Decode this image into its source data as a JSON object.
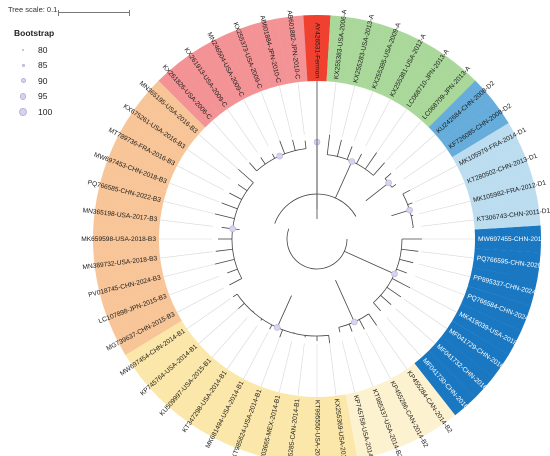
{
  "tree_scale": {
    "label": "Tree scale: 0.1"
  },
  "legend": {
    "title": "Bootstrap",
    "items": [
      {
        "label": "80",
        "size": 2
      },
      {
        "label": "85",
        "size": 3
      },
      {
        "label": "90",
        "size": 5
      },
      {
        "label": "95",
        "size": 6.5
      },
      {
        "label": "100",
        "size": 8
      }
    ]
  },
  "clade_colors": {
    "D3": "#1a78c2",
    "D1": "#bcdcef",
    "D2": "#67addc",
    "A": "#a9d89a",
    "Fermon": "#f0402f",
    "C": "#f39396",
    "B3": "#f7c597",
    "B1": "#fbe7a9",
    "B2": "#fdf2cf"
  },
  "leaves": [
    {
      "label": "MW697455-CHN-2019-D3",
      "clade": "D3"
    },
    {
      "label": "PQ766595-CHN-2020-D3",
      "clade": "D3"
    },
    {
      "label": "PP895337-CHN-2024-D3",
      "clade": "D3"
    },
    {
      "label": "PQ766584-CHN-2024-D3",
      "clade": "D3"
    },
    {
      "label": "MK419039-USA-2018-D3",
      "clade": "D3"
    },
    {
      "label": "MF041729-CHN-2016-D3",
      "clade": "D3"
    },
    {
      "label": "MF041732-CHN-2016-D3",
      "clade": "D3"
    },
    {
      "label": "MF041730-CHN-2016-D3",
      "clade": "D3"
    },
    {
      "label": "KP455284-CAN-2014-B2",
      "clade": "B2"
    },
    {
      "label": "KP455286-CAN-2014-B2",
      "clade": "B2"
    },
    {
      "label": "KT985337-USA-2014-B2",
      "clade": "B2"
    },
    {
      "label": "KP745758-USA-2014-B2",
      "clade": "B2"
    },
    {
      "label": "KX255369-USA-2013-B1",
      "clade": "B1"
    },
    {
      "label": "KT995550-USA-2014-B1",
      "clade": "B1"
    },
    {
      "label": "KP455285-CAN-2014-B1",
      "clade": "B1"
    },
    {
      "label": "KT803665-MEX-2014-B1",
      "clade": "B1"
    },
    {
      "label": "KT985624-USA-2014-B1",
      "clade": "B1"
    },
    {
      "label": "MK681494-USA-2014-B1",
      "clade": "B1"
    },
    {
      "label": "KT347298-USA-2014-B1",
      "clade": "B1"
    },
    {
      "label": "KU509997-USA-2015-B1",
      "clade": "B1"
    },
    {
      "label": "KP745764-USA-2014-B1",
      "clade": "B1"
    },
    {
      "label": "MW697454-CHN-2014-B1",
      "clade": "B1"
    },
    {
      "label": "MG739637-CHN-2015-B3",
      "clade": "B3"
    },
    {
      "label": "LC107898-JPN-2015-B3",
      "clade": "B3"
    },
    {
      "label": "PV018745-CHN-2024-B3",
      "clade": "B3"
    },
    {
      "label": "MN389732-USA-2018-B3",
      "clade": "B3"
    },
    {
      "label": "MK659598-USA-2018-B3",
      "clade": "B3"
    },
    {
      "label": "MN365198-USA-2017-B3",
      "clade": "B3"
    },
    {
      "label": "PQ766585-CHN-2022-B3",
      "clade": "B3"
    },
    {
      "label": "MW697453-CHN-2018-B3",
      "clade": "B3"
    },
    {
      "label": "MT789736-FRA-2016-B3",
      "clade": "B3"
    },
    {
      "label": "KX675261-USA-2016-B3",
      "clade": "B3"
    },
    {
      "label": "MN365195-USA-2016-B3",
      "clade": "B3"
    },
    {
      "label": "KX261826-USA-2006-C",
      "clade": "C"
    },
    {
      "label": "KX261913-USA-2009-C",
      "clade": "C"
    },
    {
      "label": "MN246504-USA-2009-C",
      "clade": "C"
    },
    {
      "label": "KX255373-USA-2009-C",
      "clade": "C"
    },
    {
      "label": "AB601884-JPN-2010-C",
      "clade": "C"
    },
    {
      "label": "AB601882-JPN-2010-C",
      "clade": "C"
    },
    {
      "label": "AY426531-Fermon",
      "clade": "Fermon"
    },
    {
      "label": "KX255383-USA-2006-A",
      "clade": "A"
    },
    {
      "label": "KX255283-USA-2013-A",
      "clade": "A"
    },
    {
      "label": "KX255385-USA-2009-A",
      "clade": "A"
    },
    {
      "label": "KX255381-USA-2012-A",
      "clade": "A"
    },
    {
      "label": "LC068710-JPN-2013-A",
      "clade": "A"
    },
    {
      "label": "LC068709-JPN-2013-A",
      "clade": "A"
    },
    {
      "label": "KU242684-CHN-2008-D2",
      "clade": "D2"
    },
    {
      "label": "KF726085-CHN-2008-D2",
      "clade": "D2"
    },
    {
      "label": "MK105979-FRA-2014-D1",
      "clade": "D1"
    },
    {
      "label": "KT280502-CHN-2013-D1",
      "clade": "D1"
    },
    {
      "label": "MK105982-FRA-2012-D1",
      "clade": "D1"
    },
    {
      "label": "KT306743-CHN-2011-D1",
      "clade": "D1"
    }
  ]
}
